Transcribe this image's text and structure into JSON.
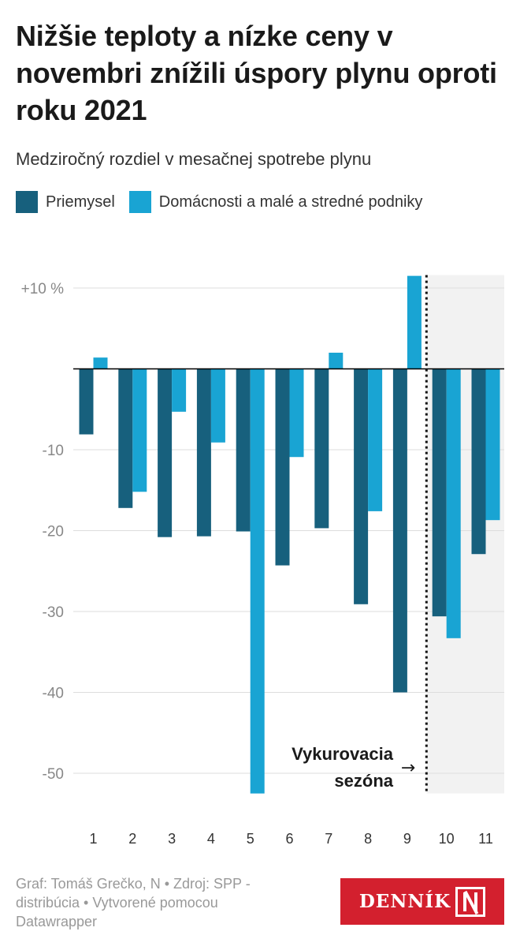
{
  "title": "Nižšie teploty a nízke ceny v novembri znížili úspory plynu oproti roku 2021",
  "subtitle": "Medziročný rozdiel v mesačnej spotrebe plynu",
  "footer": "Graf: Tomáš Grečko, N • Zdroj: SPP - distribúcia • Vytvorené pomocou Datawrapper",
  "logo_text": "DENNÍK",
  "colors": {
    "industry": "#17607d",
    "households": "#19a4d3",
    "gridline": "#dddddd",
    "zero_line": "#000000",
    "highlight_band": "#f2f2f2",
    "tick_text": "#888888"
  },
  "chart_data": {
    "type": "bar",
    "categories": [
      "1",
      "2",
      "3",
      "4",
      "5",
      "6",
      "7",
      "8",
      "9",
      "10",
      "11"
    ],
    "series": [
      {
        "name": "Priemysel",
        "values": [
          -8.1,
          -17.2,
          -20.8,
          -20.7,
          -20.1,
          -24.3,
          -19.7,
          -29.1,
          -40.0,
          -30.6,
          -22.9
        ]
      },
      {
        "name": "Domácnosti a malé a stredné podniky",
        "values": [
          1.4,
          -15.2,
          -5.3,
          -9.1,
          -52.5,
          -10.9,
          2.0,
          -17.6,
          11.5,
          -33.3,
          -18.7
        ]
      }
    ],
    "y_ticks": [
      10,
      -10,
      -20,
      -30,
      -40,
      -50
    ],
    "y_tick_labels": [
      "+10 %",
      "-10",
      "-20",
      "-30",
      "-40",
      "-50"
    ],
    "ylim": [
      -52.5,
      11.5
    ],
    "grid": true,
    "legend_position": "top-left",
    "annotation": {
      "line1": "Vykurovacia",
      "line2": "sezóna",
      "arrow": "→",
      "highlighted_categories": [
        "10",
        "11"
      ]
    }
  }
}
